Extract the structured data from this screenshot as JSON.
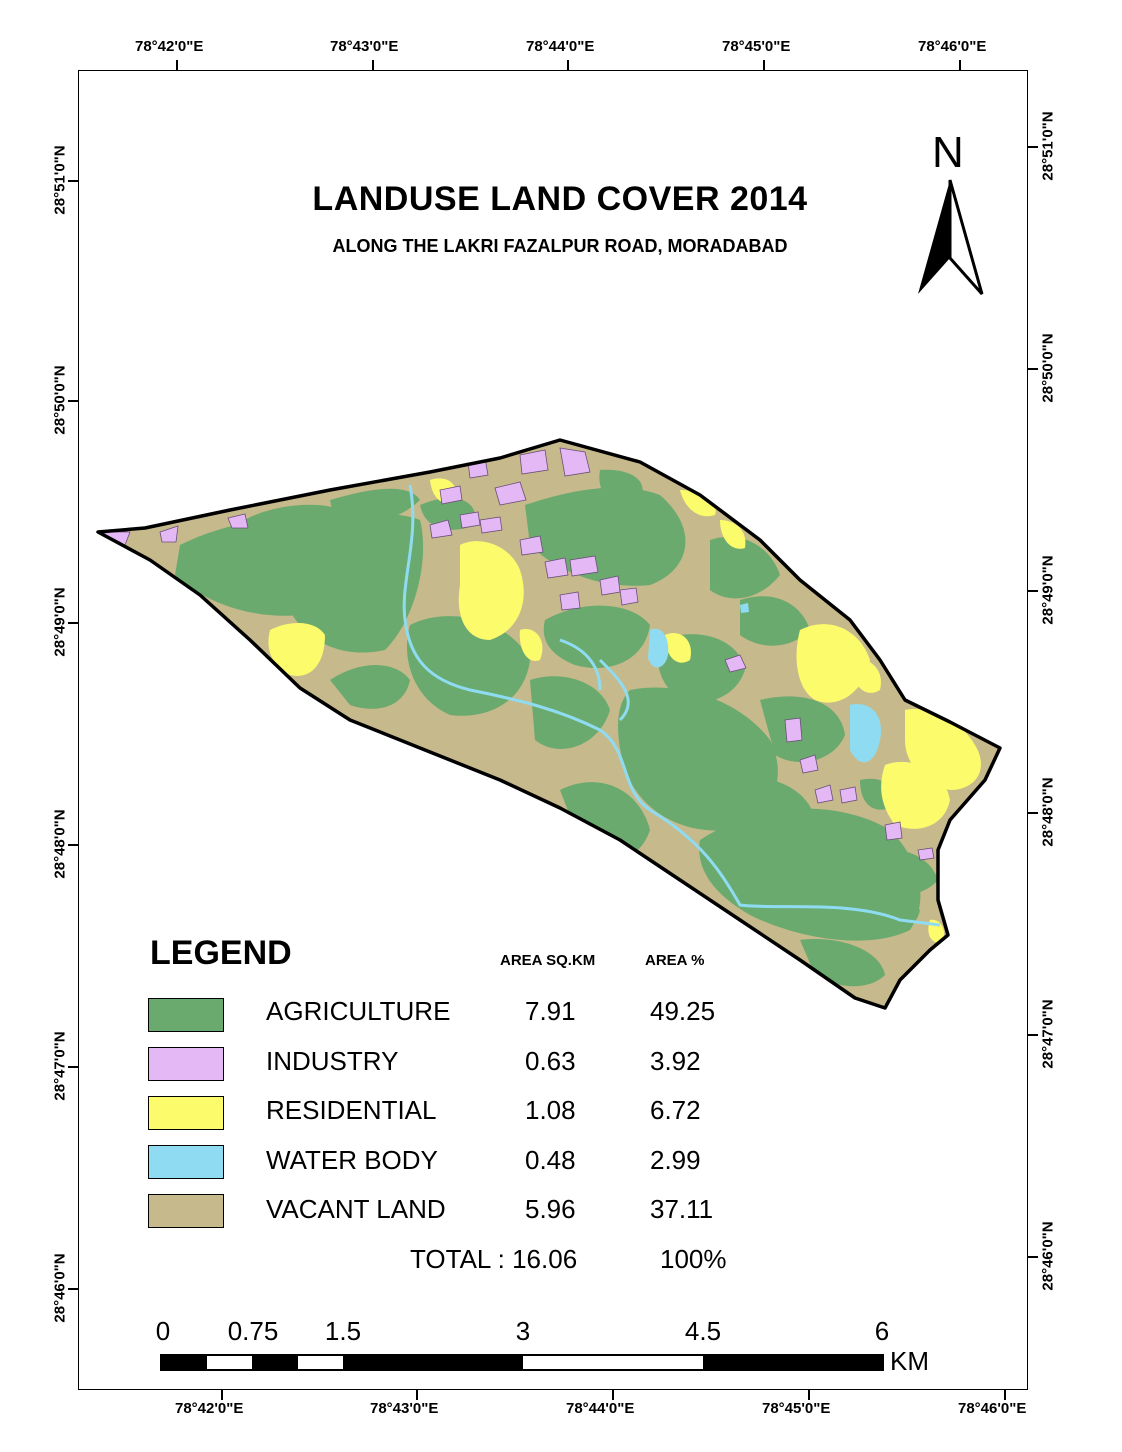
{
  "map": {
    "title": "LANDUSE LAND COVER 2014",
    "subtitle": "ALONG THE LAKRI FAZALPUR ROAD, MORADABAD",
    "north_label": "N",
    "longitude_labels": [
      "78°42'0\"E",
      "78°43'0\"E",
      "78°44'0\"E",
      "78°45'0\"E",
      "78°46'0\"E"
    ],
    "latitude_labels": [
      "28°51'0\"N",
      "28°50'0\"N",
      "28°49'0\"N",
      "28°48'0\"N",
      "28°47'0\"N",
      "28°46'0\"N"
    ],
    "colors": {
      "agriculture": "#6aaa6f",
      "industry": "#e4b8f4",
      "residential": "#fbfb6c",
      "water_body": "#8fdcf2",
      "vacant_land": "#c6b98b"
    }
  },
  "legend": {
    "title": "LEGEND",
    "col_area": "AREA SQ.KM",
    "col_pct": "AREA %",
    "items": [
      {
        "name": "AGRICULTURE",
        "area": "7.91",
        "pct": "49.25",
        "color": "#6aaa6f"
      },
      {
        "name": "INDUSTRY",
        "area": "0.63",
        "pct": "3.92",
        "color": "#e4b8f4"
      },
      {
        "name": "RESIDENTIAL",
        "area": "1.08",
        "pct": "6.72",
        "color": "#fbfb6c"
      },
      {
        "name": "WATER BODY",
        "area": "0.48",
        "pct": "2.99",
        "color": "#8fdcf2"
      },
      {
        "name": "VACANT LAND",
        "area": "5.96",
        "pct": "37.11",
        "color": "#c6b98b"
      }
    ],
    "total_label": "TOTAL : 16.06",
    "total_pct": "100%"
  },
  "scale_bar": {
    "labels": [
      "0",
      "0.75",
      "1.5",
      "3",
      "4.5",
      "6"
    ],
    "unit": "KM"
  }
}
